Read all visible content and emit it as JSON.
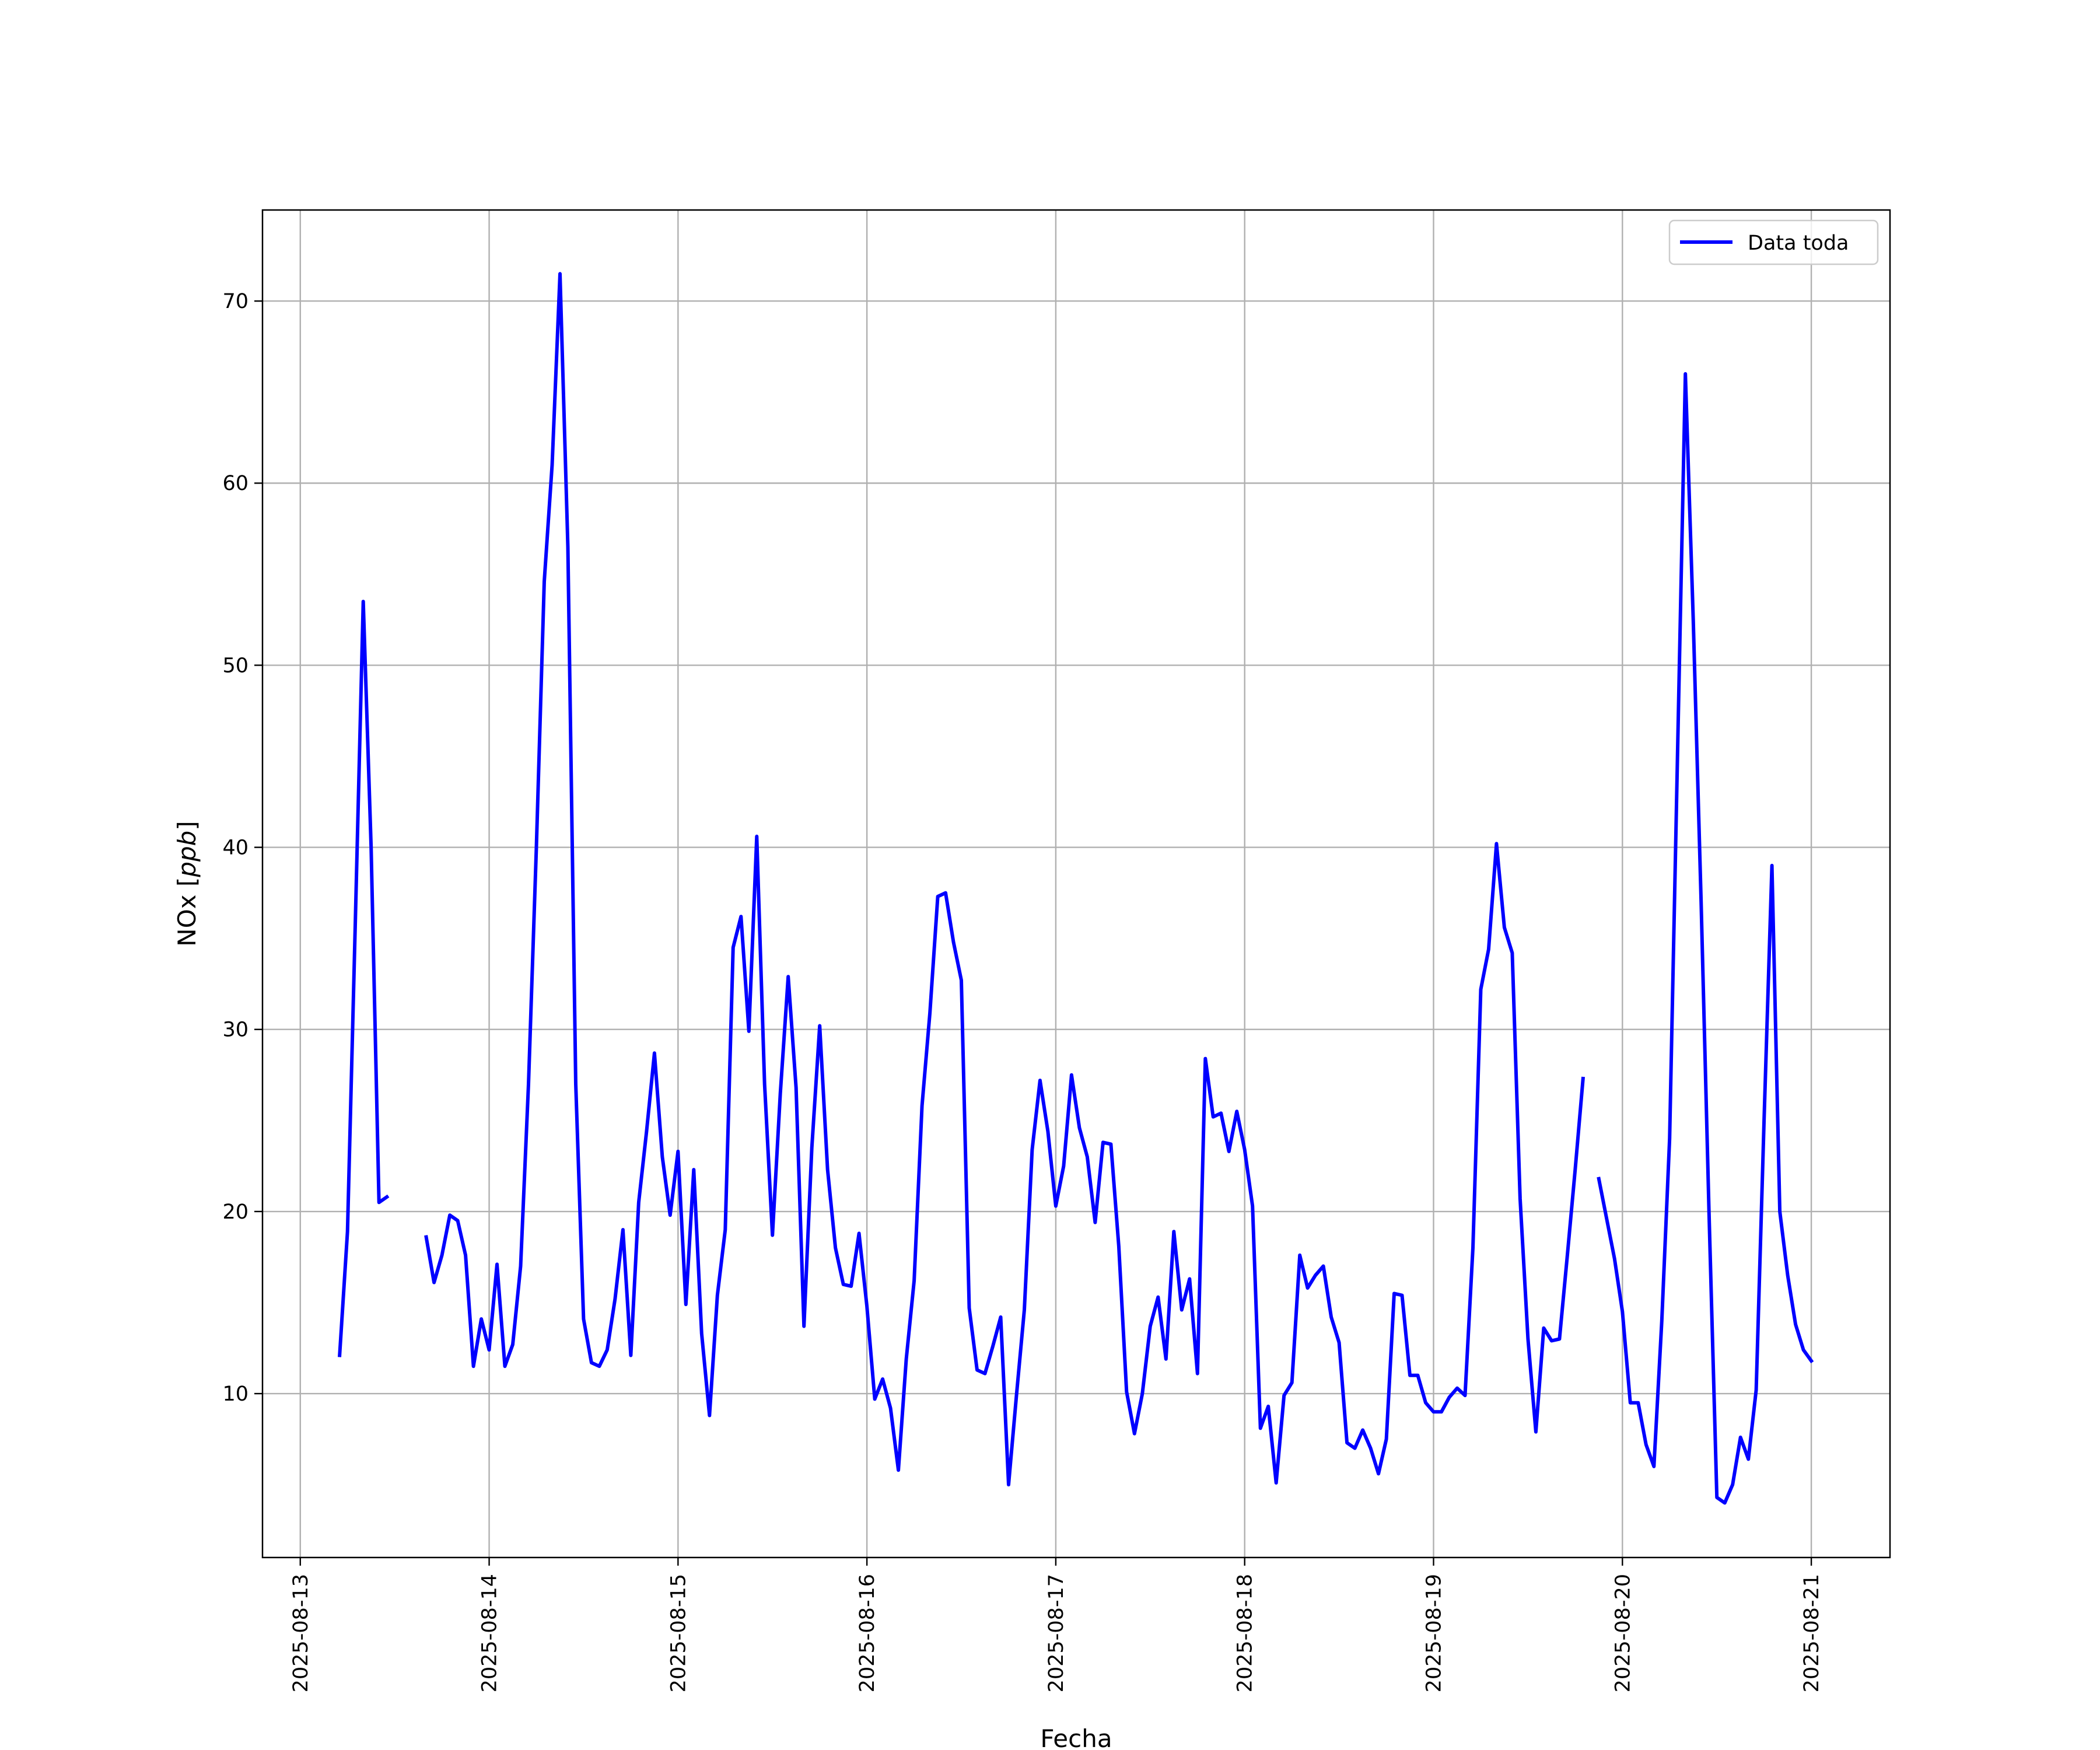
{
  "chart_data": {
    "type": "line",
    "xlabel": "Fecha",
    "ylabel": "NOx [ppb]",
    "ylabel_parts": {
      "text": "NOx ",
      "open": "[",
      "unit": "ppb",
      "close": "]"
    },
    "x_ticks": [
      "2025-08-13",
      "2025-08-14",
      "2025-08-15",
      "2025-08-16",
      "2025-08-17",
      "2025-08-18",
      "2025-08-19",
      "2025-08-20",
      "2025-08-21"
    ],
    "y_ticks": [
      "10",
      "20",
      "30",
      "40",
      "50",
      "60",
      "70"
    ],
    "xlim": [
      "2025-08-12 19:12",
      "2025-08-21 10:00"
    ],
    "ylim": [
      1.0,
      75.0
    ],
    "grid": true,
    "legend_position": "top-right",
    "series": [
      {
        "name": "Data toda",
        "color": "#0000ff",
        "start": "2025-08-13 05:00",
        "step_hours": 1,
        "values": [
          12.1,
          18.9,
          36.0,
          53.5,
          40.0,
          20.5,
          20.8,
          null,
          null,
          null,
          null,
          18.6,
          16.1,
          17.6,
          19.8,
          19.5,
          17.6,
          11.5,
          14.1,
          12.4,
          17.1,
          11.5,
          12.7,
          17.0,
          27.0,
          40.0,
          54.6,
          61.0,
          71.5,
          56.5,
          27.0,
          14.1,
          11.7,
          11.5,
          12.4,
          15.2,
          19.0,
          12.1,
          20.5,
          24.4,
          28.7,
          23.0,
          19.8,
          23.3,
          14.9,
          22.3,
          13.3,
          8.8,
          15.4,
          19.0,
          34.5,
          36.2,
          29.9,
          40.6,
          27.0,
          18.7,
          26.5,
          32.9,
          26.8,
          13.7,
          23.5,
          30.2,
          22.3,
          18.0,
          16.0,
          15.9,
          18.8,
          14.8,
          9.7,
          10.8,
          9.2,
          5.8,
          11.9,
          16.2,
          25.8,
          30.9,
          37.3,
          37.5,
          34.8,
          32.7,
          14.7,
          11.3,
          11.1,
          12.6,
          14.2,
          5.0,
          9.9,
          14.6,
          23.4,
          27.2,
          24.4,
          20.3,
          22.5,
          27.5,
          24.6,
          23.0,
          19.4,
          23.8,
          23.7,
          18.1,
          10.1,
          7.8,
          10.0,
          13.7,
          15.3,
          11.9,
          18.9,
          14.6,
          16.3,
          11.1,
          28.4,
          25.2,
          25.4,
          23.3,
          25.5,
          23.4,
          20.3,
          8.1,
          9.3,
          5.1,
          9.9,
          10.6,
          17.6,
          15.8,
          16.5,
          17.0,
          14.2,
          12.8,
          7.3,
          7.0,
          8.0,
          7.0,
          5.6,
          7.5,
          15.5,
          15.4,
          11.0,
          11.0,
          9.5,
          9.0,
          9.0,
          9.8,
          10.3,
          9.9,
          18.0,
          32.2,
          34.4,
          40.2,
          35.6,
          34.2,
          20.7,
          13.0,
          7.9,
          13.6,
          12.9,
          13.0,
          17.6,
          22.3,
          27.3,
          null,
          21.8,
          19.6,
          17.4,
          14.5,
          9.5,
          9.5,
          7.2,
          6.0,
          14.0,
          24.0,
          45.0,
          66.0,
          52.5,
          37.0,
          20.0,
          4.3,
          4.0,
          5.0,
          7.6,
          6.4,
          10.2,
          25.0,
          39.0,
          20.0,
          16.5,
          13.8,
          12.4,
          11.8
        ]
      }
    ]
  }
}
